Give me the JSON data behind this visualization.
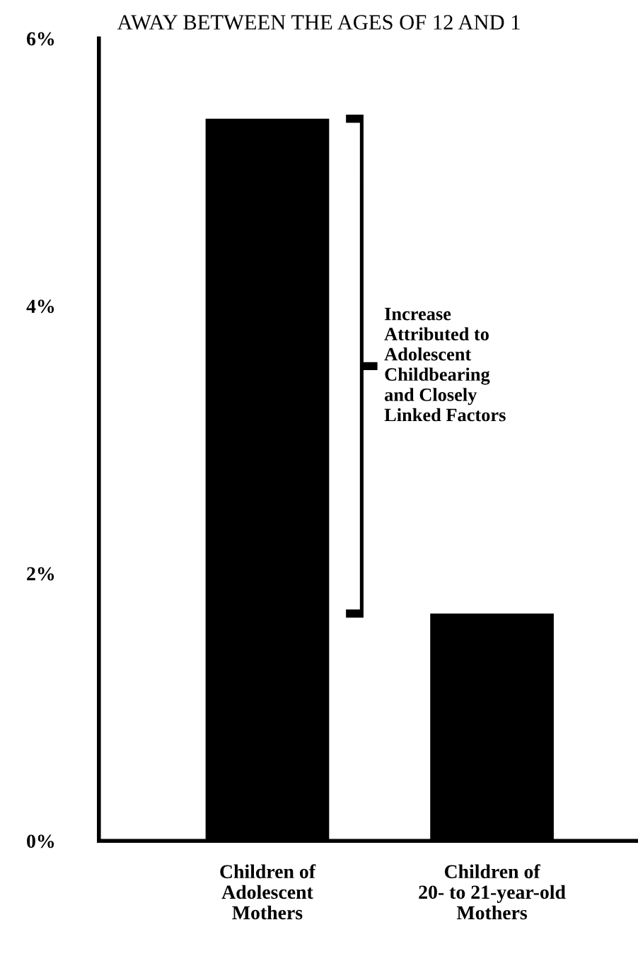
{
  "chart_data": {
    "type": "bar",
    "title": "AWAY BETWEEN THE AGES OF 12 AND 1",
    "categories": [
      "Children of\nAdolescent\nMothers",
      "Children of\n20- to 21-year-old\nMothers"
    ],
    "values": [
      5.4,
      1.7
    ],
    "color": "#000000",
    "ylim": [
      0,
      6
    ],
    "yticks": [
      {
        "value": 0,
        "label": "0%"
      },
      {
        "value": 2,
        "label": "2%"
      },
      {
        "value": 4,
        "label": "4%"
      },
      {
        "value": 6,
        "label": "6%"
      }
    ],
    "annotations": [
      "Increase\nAttributed to\nAdolescent\nChildbearing\nand Closely\nLinked Factors"
    ],
    "grid": false
  }
}
